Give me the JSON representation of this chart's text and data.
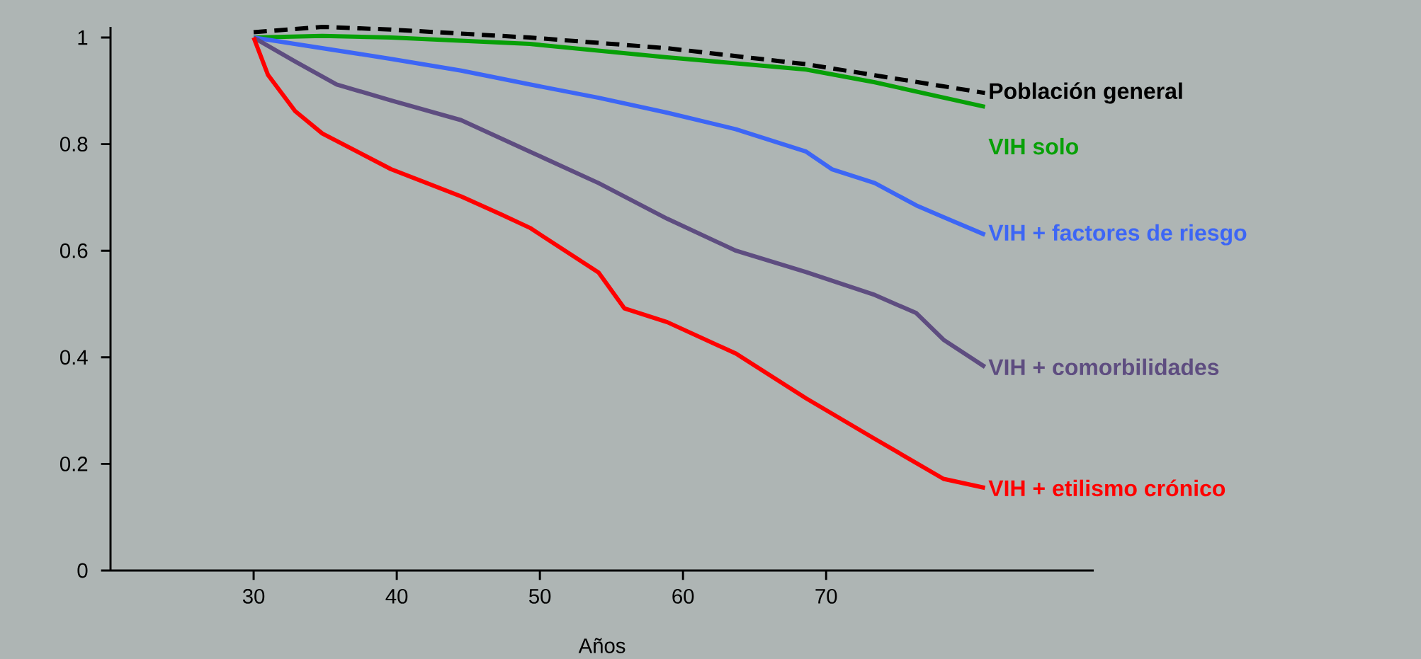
{
  "chart_data": {
    "type": "line",
    "xlabel": "Años",
    "xlim": [
      20,
      88.7
    ],
    "ylim": [
      0,
      1.02
    ],
    "xticks": [
      30,
      40,
      50,
      60,
      70
    ],
    "yticks": [
      0,
      0.2,
      0.4,
      0.6,
      0.8,
      1
    ],
    "marker": "none",
    "series": [
      {
        "name": "Población general",
        "color": "#000000",
        "line_style": "dashed",
        "x": [
          30,
          34.8,
          39.6,
          49.3,
          58.9,
          68.6,
          81.1
        ],
        "values": [
          1.01,
          1.02,
          1.015,
          1.0,
          0.98,
          0.95,
          0.896
        ]
      },
      {
        "name": "VIH solo",
        "color": "#07a007",
        "x": [
          30,
          34.8,
          39.6,
          49.3,
          58.9,
          68.6,
          73.4,
          81.1
        ],
        "values": [
          1.0,
          1.003,
          1.0,
          0.988,
          0.963,
          0.94,
          0.916,
          0.87
        ]
      },
      {
        "name": "VIH + factores de riesgo",
        "color": "#3d66f5",
        "x": [
          30,
          34.8,
          39.6,
          44.5,
          49.3,
          54.1,
          58.9,
          63.7,
          68.6,
          70.4,
          73.4,
          76.3,
          78.2,
          81.1
        ],
        "values": [
          1.0,
          0.98,
          0.96,
          0.938,
          0.912,
          0.887,
          0.859,
          0.828,
          0.786,
          0.753,
          0.727,
          0.685,
          0.663,
          0.63
        ]
      },
      {
        "name": "VIH + comorbilidades",
        "color": "#5e4d80",
        "x": [
          30,
          32.9,
          35.8,
          39.6,
          44.5,
          49.3,
          54.1,
          58.9,
          63.7,
          68.6,
          73.4,
          76.3,
          78.2,
          81.1
        ],
        "values": [
          1.0,
          0.955,
          0.912,
          0.882,
          0.845,
          0.786,
          0.727,
          0.66,
          0.6,
          0.56,
          0.517,
          0.483,
          0.433,
          0.382
        ]
      },
      {
        "name": "VIH + etilismo crónico",
        "color": "#ff0000",
        "x": [
          30,
          31,
          32.9,
          34.8,
          39.6,
          44.5,
          47.3,
          49.3,
          54.1,
          55.9,
          58.9,
          63.7,
          68.6,
          73.4,
          78.2,
          81.1
        ],
        "values": [
          1.0,
          0.93,
          0.862,
          0.82,
          0.753,
          0.702,
          0.668,
          0.643,
          0.559,
          0.492,
          0.466,
          0.407,
          0.323,
          0.247,
          0.172,
          0.155
        ]
      }
    ]
  }
}
